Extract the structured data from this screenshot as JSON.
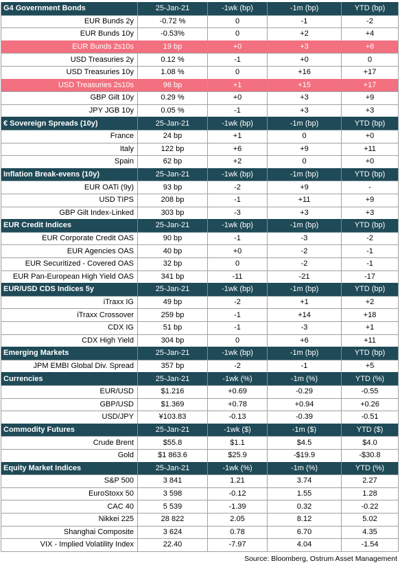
{
  "sections": [
    {
      "headers": [
        "G4 Government Bonds",
        "25-Jan-21",
        "-1wk (bp)",
        "-1m (bp)",
        "YTD (bp)"
      ],
      "rows": [
        {
          "cells": [
            "EUR Bunds 2y",
            "-0.72 %",
            "0",
            "-1",
            "-2"
          ]
        },
        {
          "cells": [
            "EUR Bunds 10y",
            "-0.53%",
            "0",
            "+2",
            "+4"
          ]
        },
        {
          "cells": [
            "EUR Bunds 2s10s",
            "19 bp",
            "+0",
            "+3",
            "+6"
          ],
          "highlight": true
        },
        {
          "cells": [
            "USD Treasuries 2y",
            "0.12 %",
            "-1",
            "+0",
            "0"
          ]
        },
        {
          "cells": [
            "USD Treasuries 10y",
            "1.08 %",
            "0",
            "+16",
            "+17"
          ]
        },
        {
          "cells": [
            "USD Treasuries 2s10s",
            "96 bp",
            "+1",
            "+15",
            "+17"
          ],
          "highlight": true
        },
        {
          "cells": [
            "GBP Gilt 10y",
            "0.29 %",
            "+0",
            "+3",
            "+9"
          ]
        },
        {
          "cells": [
            "JPY JGB 10y",
            "0.05 %",
            "-1",
            "+3",
            "+3"
          ]
        }
      ]
    },
    {
      "headers": [
        "€ Sovereign Spreads (10y)",
        "25-Jan-21",
        "-1wk (bp)",
        "-1m (bp)",
        "YTD (bp)"
      ],
      "rows": [
        {
          "cells": [
            "France",
            "24 bp",
            "+1",
            "0",
            "+0"
          ]
        },
        {
          "cells": [
            "Italy",
            "122 bp",
            "+6",
            "+9",
            "+11"
          ]
        },
        {
          "cells": [
            "Spain",
            "62 bp",
            "+2",
            "0",
            "+0"
          ]
        }
      ]
    },
    {
      "headers": [
        "Inflation Break-evens (10y)",
        "25-Jan-21",
        "-1wk (bp)",
        "-1m (bp)",
        "YTD (bp)"
      ],
      "rows": [
        {
          "cells": [
            "EUR OATi (9y)",
            "93 bp",
            "-2",
            "+9",
            "-"
          ]
        },
        {
          "cells": [
            "USD TIPS",
            "208 bp",
            "-1",
            "+11",
            "+9"
          ]
        },
        {
          "cells": [
            "GBP Gilt Index-Linked",
            "303 bp",
            "-3",
            "+3",
            "+3"
          ]
        }
      ]
    },
    {
      "headers": [
        "EUR Credit Indices",
        "25-Jan-21",
        "-1wk (bp)",
        "-1m (bp)",
        "YTD (bp)"
      ],
      "rows": [
        {
          "cells": [
            "EUR Corporate Credit OAS",
            "90 bp",
            "-1",
            "-3",
            "-2"
          ]
        },
        {
          "cells": [
            "EUR Agencies OAS",
            "40 bp",
            "+0",
            "-2",
            "-1"
          ]
        },
        {
          "cells": [
            "EUR Securitized - Covered OAS",
            "32 bp",
            "0",
            "-2",
            "-1"
          ]
        },
        {
          "cells": [
            "EUR Pan-European High Yield OAS",
            "341 bp",
            "-11",
            "-21",
            "-17"
          ]
        }
      ]
    },
    {
      "headers": [
        "EUR/USD CDS Indices 5y",
        "25-Jan-21",
        "-1wk (bp)",
        "-1m (bp)",
        "YTD (bp)"
      ],
      "rows": [
        {
          "cells": [
            "iTraxx IG",
            "49 bp",
            "-2",
            "+1",
            "+2"
          ]
        },
        {
          "cells": [
            "iTraxx Crossover",
            "259 bp",
            "-1",
            "+14",
            "+18"
          ]
        },
        {
          "cells": [
            "CDX IG",
            "51 bp",
            "-1",
            "-3",
            "+1"
          ]
        },
        {
          "cells": [
            "CDX High Yield",
            "304 bp",
            "0",
            "+6",
            "+11"
          ]
        }
      ]
    },
    {
      "headers": [
        "Emerging Markets",
        "25-Jan-21",
        "-1wk (bp)",
        "-1m (bp)",
        "YTD (bp)"
      ],
      "rows": [
        {
          "cells": [
            "JPM EMBI Global Div. Spread",
            "357 bp",
            "-2",
            "-1",
            "+5"
          ]
        }
      ]
    },
    {
      "headers": [
        "Currencies",
        "25-Jan-21",
        "-1wk (%)",
        "-1m (%)",
        "YTD (%)"
      ],
      "rows": [
        {
          "cells": [
            "EUR/USD",
            "$1.216",
            "+0.69",
            "-0.29",
            "-0.55"
          ]
        },
        {
          "cells": [
            "GBP/USD",
            "$1.369",
            "+0.78",
            "+0.94",
            "+0.26"
          ]
        },
        {
          "cells": [
            "USD/JPY",
            "¥103.83",
            "-0.13",
            "-0.39",
            "-0.51"
          ]
        }
      ]
    },
    {
      "headers": [
        "Commodity Futures",
        "25-Jan-21",
        "-1wk ($)",
        "-1m ($)",
        "YTD ($)"
      ],
      "rows": [
        {
          "cells": [
            "Crude Brent",
            "$55.8",
            "$1.1",
            "$4.5",
            "$4.0"
          ]
        },
        {
          "cells": [
            "Gold",
            "$1 863.6",
            "$25.9",
            "-$19.9",
            "-$30.8"
          ]
        }
      ]
    },
    {
      "headers": [
        "Equity Market Indices",
        "25-Jan-21",
        "-1wk (%)",
        "-1m (%)",
        "YTD (%)"
      ],
      "rows": [
        {
          "cells": [
            "S&P 500",
            "3 841",
            "1.21",
            "3.74",
            "2.27"
          ]
        },
        {
          "cells": [
            "EuroStoxx 50",
            "3 598",
            "-0.12",
            "1.55",
            "1.28"
          ]
        },
        {
          "cells": [
            "CAC 40",
            "5 539",
            "-1.39",
            "0.32",
            "-0.22"
          ]
        },
        {
          "cells": [
            "Nikkei 225",
            "28 822",
            "2.05",
            "8.12",
            "5.02"
          ]
        },
        {
          "cells": [
            "Shanghai Composite",
            "3 624",
            "0.78",
            "6.70",
            "4.35"
          ]
        },
        {
          "cells": [
            "VIX - Implied Volatility Index",
            "22.40",
            "-7.97",
            "4.04",
            "-1.54"
          ]
        }
      ]
    }
  ],
  "source": "Source: Bloomberg, Ostrum Asset Management"
}
